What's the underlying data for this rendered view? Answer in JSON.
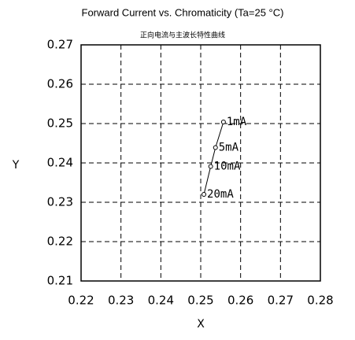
{
  "chart_data": {
    "type": "line",
    "title": "Forward Current vs. Chromaticity (Ta=25 °C)",
    "subtitle": "正向电流与主波长特性曲线",
    "x_label": "X",
    "y_label": "Y",
    "x": [
      0.2557,
      0.2537,
      0.2525,
      0.2508
    ],
    "values": [
      0.2504,
      0.2439,
      0.2391,
      0.232
    ],
    "point_labels": [
      "1mA",
      "5mA",
      "10mA",
      "20mA"
    ],
    "color": "#000000",
    "xlim": [
      0.22,
      0.28
    ],
    "xticks": [
      0.22,
      0.23,
      0.24,
      0.25,
      0.26,
      0.27,
      0.28
    ],
    "ylim": [
      0.21,
      0.27
    ],
    "yticks": [
      0.21,
      0.22,
      0.23,
      0.24,
      0.25,
      0.26,
      0.27
    ],
    "grid": true
  }
}
